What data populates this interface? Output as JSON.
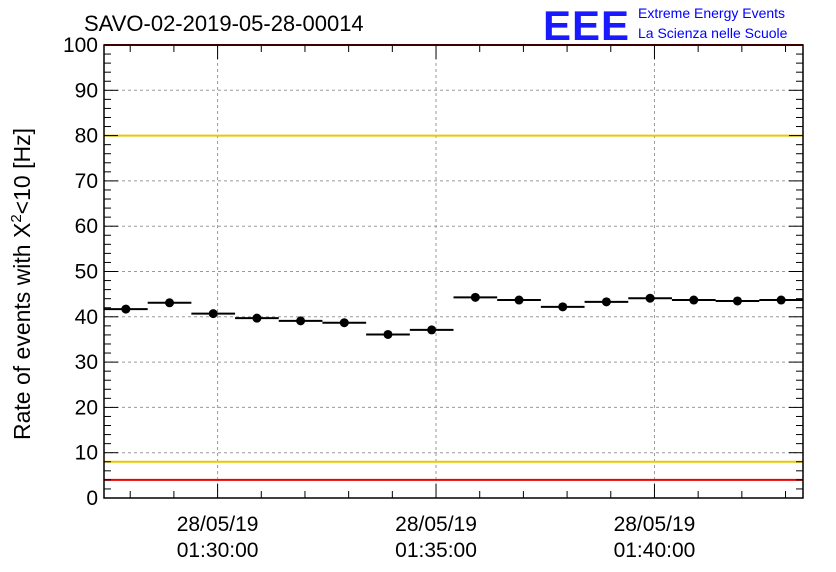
{
  "chart_data": {
    "type": "scatter",
    "title": "SAVO-02-2019-05-28-00014",
    "ylabel_parts": [
      "Rate of events with X",
      "2",
      "<10 [Hz]"
    ],
    "ylim": [
      0,
      100
    ],
    "yticks": [
      0,
      10,
      20,
      30,
      40,
      50,
      60,
      70,
      80,
      90,
      100
    ],
    "x_tick_labels": [
      {
        "date": "28/05/19",
        "time": "01:30:00"
      },
      {
        "date": "28/05/19",
        "time": "01:35:00"
      },
      {
        "date": "28/05/19",
        "time": "01:40:00"
      }
    ],
    "x_minutes_range": [
      27.4,
      43.4
    ],
    "x_major_minutes": [
      30,
      35,
      40
    ],
    "bin_width_minutes": 1,
    "series": [
      {
        "name": "rate",
        "x_minutes": [
          27.9,
          28.9,
          29.9,
          30.9,
          31.9,
          32.9,
          33.9,
          34.9,
          35.9,
          36.9,
          37.9,
          38.9,
          39.9,
          40.9,
          41.9,
          42.9
        ],
        "values": [
          41.7,
          43.1,
          40.7,
          39.7,
          39.1,
          38.7,
          36.1,
          37.1,
          44.3,
          43.7,
          42.2,
          43.3,
          44.1,
          43.7,
          43.5,
          43.7
        ]
      }
    ],
    "reference_lines": [
      {
        "name": "upper-red-limit",
        "value": 100,
        "color": "#ee0000"
      },
      {
        "name": "upper-yellow-limit",
        "value": 80,
        "color": "#e8c800"
      },
      {
        "name": "lower-yellow-limit",
        "value": 8,
        "color": "#e8c800"
      },
      {
        "name": "lower-red-limit",
        "value": 4,
        "color": "#ee0000"
      }
    ]
  },
  "logo": {
    "mark": "EEE",
    "line1": "Extreme Energy Events",
    "line2": "La Scienza nelle Scuole",
    "color": "#1a1aff"
  }
}
